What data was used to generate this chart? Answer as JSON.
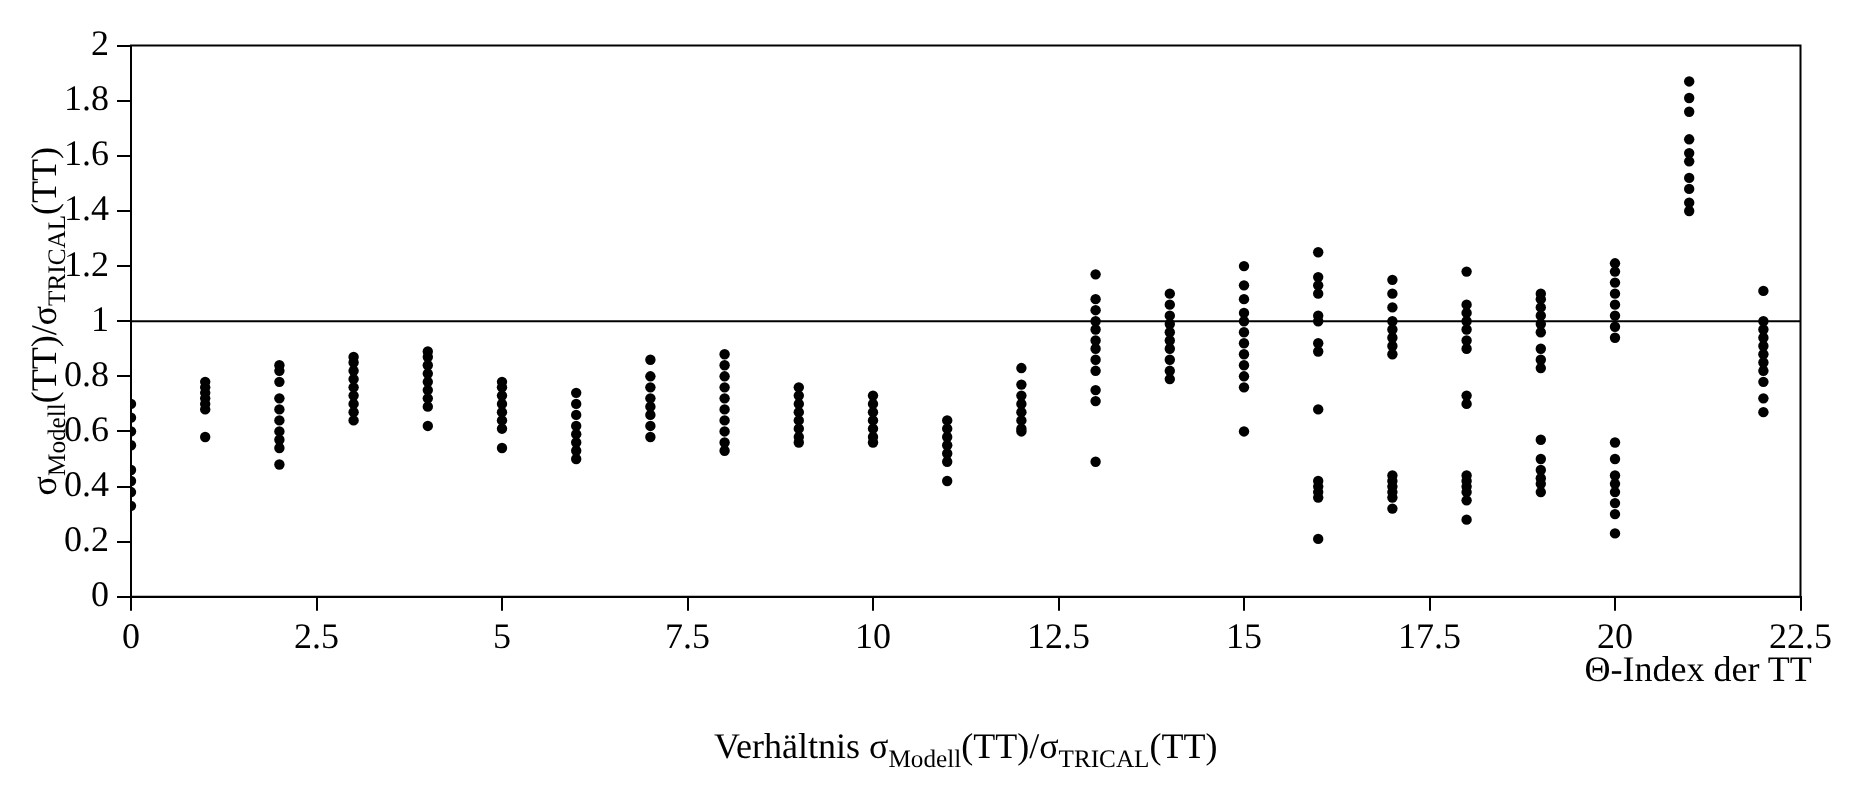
{
  "chart_data": {
    "type": "scatter",
    "title": "Verhältnis σ$_{Modell}$(TT)/σ$_{TRICAL}$(TT)",
    "xlabel": "Θ-Index der TT",
    "ylabel": "σ$_{Modell}$(TT)/σ$_{TRICAL}$(TT)",
    "xlim": [
      0,
      22.5
    ],
    "xticks": [
      0,
      2.5,
      5,
      7.5,
      10,
      12.5,
      15,
      17.5,
      20,
      22.5
    ],
    "ylim": [
      0,
      2
    ],
    "yticks": [
      0,
      0.2,
      0.4,
      0.6,
      0.8,
      1,
      1.2,
      1.4,
      1.6,
      1.8,
      2
    ],
    "grid": false,
    "legend": false,
    "marker": "circle",
    "ref_lines": [
      {
        "axis": "y",
        "value": 1,
        "color": "#000000"
      }
    ],
    "series": [
      {
        "color": "#000000",
        "x": [
          0,
          0,
          0,
          0,
          0,
          0,
          0,
          0,
          1,
          1,
          1,
          1,
          1,
          1,
          1,
          2,
          2,
          2,
          2,
          2,
          2,
          2,
          2,
          2,
          2,
          3,
          3,
          3,
          3,
          3,
          3,
          3,
          3,
          3,
          4,
          4,
          4,
          4,
          4,
          4,
          4,
          4,
          4,
          5,
          5,
          5,
          5,
          5,
          5,
          5,
          5,
          6,
          6,
          6,
          6,
          6,
          6,
          6,
          6,
          7,
          7,
          7,
          7,
          7,
          7,
          7,
          7,
          8,
          8,
          8,
          8,
          8,
          8,
          8,
          8,
          8,
          8,
          9,
          9,
          9,
          9,
          9,
          9,
          9,
          9,
          10,
          10,
          10,
          10,
          10,
          10,
          10,
          11,
          11,
          11,
          11,
          11,
          11,
          11,
          12,
          12,
          12,
          12,
          12,
          12,
          12,
          12,
          13,
          13,
          13,
          13,
          13,
          13,
          13,
          13,
          13,
          13,
          13,
          13,
          14,
          14,
          14,
          14,
          14,
          14,
          14,
          14,
          14,
          14,
          15,
          15,
          15,
          15,
          15,
          15,
          15,
          15,
          15,
          15,
          15,
          15,
          16,
          16,
          16,
          16,
          16,
          16,
          16,
          16,
          16,
          16,
          16,
          16,
          16,
          16,
          17,
          17,
          17,
          17,
          17,
          17,
          17,
          17,
          17,
          17,
          17,
          17,
          17,
          17,
          18,
          18,
          18,
          18,
          18,
          18,
          18,
          18,
          18,
          18,
          18,
          18,
          18,
          18,
          18,
          19,
          19,
          19,
          19,
          19,
          19,
          19,
          19,
          19,
          19,
          19,
          19,
          19,
          19,
          19,
          20,
          20,
          20,
          20,
          20,
          20,
          20,
          20,
          20,
          20,
          20,
          20,
          20,
          20,
          20,
          20,
          21,
          21,
          21,
          21,
          21,
          21,
          21,
          21,
          21,
          21,
          22,
          22,
          22,
          22,
          22,
          22,
          22,
          22,
          22,
          22,
          22
        ],
        "values": [
          0.33,
          0.38,
          0.42,
          0.46,
          0.55,
          0.6,
          0.65,
          0.7,
          0.78,
          0.76,
          0.74,
          0.72,
          0.7,
          0.68,
          0.58,
          0.84,
          0.82,
          0.78,
          0.72,
          0.68,
          0.64,
          0.6,
          0.57,
          0.54,
          0.48,
          0.87,
          0.85,
          0.82,
          0.79,
          0.76,
          0.73,
          0.7,
          0.67,
          0.64,
          0.89,
          0.87,
          0.84,
          0.81,
          0.78,
          0.75,
          0.72,
          0.69,
          0.62,
          0.78,
          0.76,
          0.73,
          0.7,
          0.67,
          0.64,
          0.61,
          0.54,
          0.74,
          0.7,
          0.66,
          0.62,
          0.59,
          0.56,
          0.53,
          0.5,
          0.86,
          0.8,
          0.76,
          0.72,
          0.69,
          0.66,
          0.62,
          0.58,
          0.88,
          0.84,
          0.8,
          0.76,
          0.72,
          0.68,
          0.64,
          0.6,
          0.56,
          0.53,
          0.76,
          0.73,
          0.7,
          0.67,
          0.64,
          0.61,
          0.58,
          0.56,
          0.73,
          0.7,
          0.67,
          0.64,
          0.61,
          0.58,
          0.56,
          0.64,
          0.61,
          0.58,
          0.55,
          0.52,
          0.49,
          0.42,
          0.83,
          0.77,
          0.73,
          0.7,
          0.67,
          0.64,
          0.61,
          0.6,
          1.17,
          1.08,
          1.04,
          1.0,
          0.97,
          0.93,
          0.9,
          0.86,
          0.82,
          0.75,
          0.71,
          0.49,
          1.1,
          1.06,
          1.02,
          0.99,
          0.96,
          0.93,
          0.9,
          0.86,
          0.82,
          0.79,
          1.2,
          1.13,
          1.08,
          1.03,
          1.0,
          0.96,
          0.92,
          0.88,
          0.84,
          0.8,
          0.76,
          0.6,
          1.25,
          1.16,
          1.13,
          1.1,
          1.02,
          1.0,
          0.92,
          0.89,
          0.68,
          0.42,
          0.4,
          0.38,
          0.36,
          0.21,
          1.15,
          1.1,
          1.05,
          1.0,
          0.97,
          0.94,
          0.91,
          0.88,
          0.44,
          0.42,
          0.4,
          0.38,
          0.36,
          0.32,
          1.18,
          1.06,
          1.03,
          1.0,
          0.97,
          0.93,
          0.9,
          0.73,
          0.7,
          0.44,
          0.42,
          0.4,
          0.38,
          0.35,
          0.28,
          1.1,
          1.08,
          1.05,
          1.02,
          0.99,
          0.96,
          0.9,
          0.86,
          0.83,
          0.57,
          0.5,
          0.46,
          0.43,
          0.41,
          0.38,
          1.21,
          1.18,
          1.14,
          1.1,
          1.06,
          1.02,
          0.98,
          0.94,
          0.56,
          0.5,
          0.44,
          0.41,
          0.38,
          0.34,
          0.3,
          0.23,
          1.87,
          1.81,
          1.76,
          1.66,
          1.61,
          1.58,
          1.52,
          1.48,
          1.43,
          1.4,
          1.11,
          1.0,
          0.97,
          0.94,
          0.91,
          0.88,
          0.85,
          0.82,
          0.78,
          0.72,
          0.67
        ]
      }
    ]
  }
}
